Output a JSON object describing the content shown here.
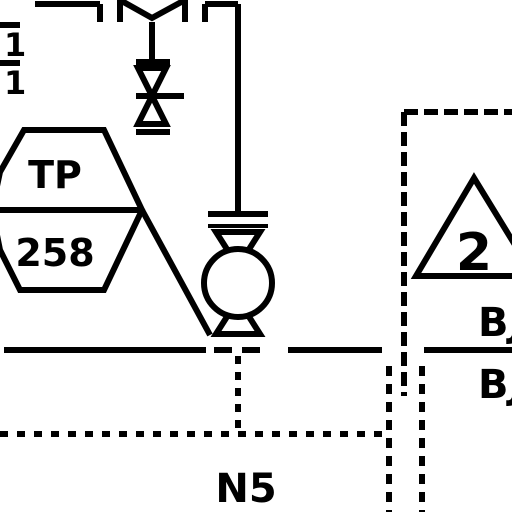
{
  "colors": {
    "ink": "#000000",
    "paper": "#ffffff"
  },
  "labels": {
    "tag_letters": "TP",
    "tag_number": "258",
    "hazard_number": "2",
    "right_code_top": "BJ",
    "right_code_bottom": "BJ",
    "bottom_code": "N5",
    "left_marks_top": "1",
    "left_marks_bottom": "1"
  },
  "icons": {
    "valve_top": "gate-valve-icon",
    "valve_mid": "check-valve-icon",
    "pump": "centrifugal-pump-icon",
    "tag": "hexagon-instrument-tag-icon",
    "hazard": "triangle-warning-icon"
  }
}
